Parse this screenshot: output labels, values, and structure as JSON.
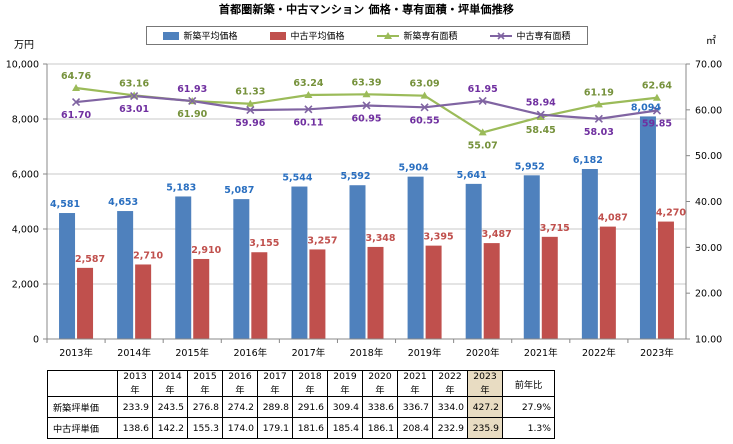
{
  "title": "首都圏新築・中古マンション 価格・専有面積・坪単価推移",
  "colors": {
    "new_price": "#4f81bd",
    "used_price": "#c0504d",
    "new_area": "#9bbb59",
    "used_area": "#8064a2",
    "new_price_label": "#2a6fc0",
    "used_price_label": "#c0504d",
    "new_area_label": "#76923c",
    "used_area_label": "#7030a0",
    "highlight": "#e8dcc2"
  },
  "legend": [
    "新築平均価格",
    "中古平均価格",
    "新築専有面積",
    "中古専有面積"
  ],
  "chart_data": {
    "type": "bar",
    "title": "首都圏新築・中古マンション 価格・専有面積・坪単価推移",
    "categories": [
      "2013年",
      "2014年",
      "2015年",
      "2016年",
      "2017年",
      "2018年",
      "2019年",
      "2020年",
      "2021年",
      "2022年",
      "2023年"
    ],
    "y_left_label": "万円",
    "y_right_label": "㎡",
    "y_left_range": [
      0,
      10000
    ],
    "y_right_range": [
      10,
      70
    ],
    "y_left_ticks": [
      "0",
      "2,000",
      "4,000",
      "6,000",
      "8,000",
      "10,000"
    ],
    "y_right_ticks": [
      "10.00",
      "20.00",
      "30.00",
      "40.00",
      "50.00",
      "60.00",
      "70.00"
    ],
    "series": [
      {
        "name": "新築平均価格",
        "type": "bar",
        "axis": "left",
        "values": [
          4581,
          4653,
          5183,
          5087,
          5544,
          5592,
          5904,
          5641,
          5952,
          6182,
          8094
        ],
        "labels": [
          "4,581",
          "4,653",
          "5,183",
          "5,087",
          "5,544",
          "5,592",
          "5,904",
          "5,641",
          "5,952",
          "6,182",
          "8,094"
        ]
      },
      {
        "name": "中古平均価格",
        "type": "bar",
        "axis": "left",
        "values": [
          2587,
          2710,
          2910,
          3155,
          3257,
          3348,
          3395,
          3487,
          3715,
          4087,
          4270
        ],
        "labels": [
          "2,587",
          "2,710",
          "2,910",
          "3,155",
          "3,257",
          "3,348",
          "3,395",
          "3,487",
          "3,715",
          "4,087",
          "4,270"
        ]
      },
      {
        "name": "新築専有面積",
        "type": "line",
        "axis": "right",
        "values": [
          64.76,
          63.16,
          61.9,
          61.33,
          63.24,
          63.39,
          63.09,
          55.07,
          58.45,
          61.19,
          62.64
        ],
        "labels": [
          "64.76",
          "63.16",
          "61.90",
          "61.33",
          "63.24",
          "63.39",
          "63.09",
          "55.07",
          "58.45",
          "61.19",
          "62.64"
        ]
      },
      {
        "name": "中古専有面積",
        "type": "line",
        "axis": "right",
        "values": [
          61.7,
          63.01,
          61.93,
          59.96,
          60.11,
          60.95,
          60.55,
          61.95,
          58.94,
          58.03,
          59.85
        ],
        "labels": [
          "61.70",
          "63.01",
          "61.93",
          "59.96",
          "60.11",
          "60.95",
          "60.55",
          "61.95",
          "58.94",
          "58.03",
          "59.85"
        ]
      }
    ]
  },
  "table": {
    "header_last": "前年比",
    "years": [
      "2013年",
      "2014年",
      "2015年",
      "2016年",
      "2017年",
      "2018年",
      "2019年",
      "2020年",
      "2021年",
      "2022年",
      "2023年"
    ],
    "rows": [
      {
        "label": "新築坪単価",
        "values": [
          "233.9",
          "243.5",
          "276.8",
          "274.2",
          "289.8",
          "291.6",
          "309.4",
          "338.6",
          "336.7",
          "334.0",
          "427.2"
        ],
        "yoy": "27.9%"
      },
      {
        "label": "中古坪単価",
        "values": [
          "138.6",
          "142.2",
          "155.3",
          "174.0",
          "179.1",
          "181.6",
          "185.4",
          "186.1",
          "208.4",
          "232.9",
          "235.9"
        ],
        "yoy": "1.3%"
      }
    ]
  }
}
